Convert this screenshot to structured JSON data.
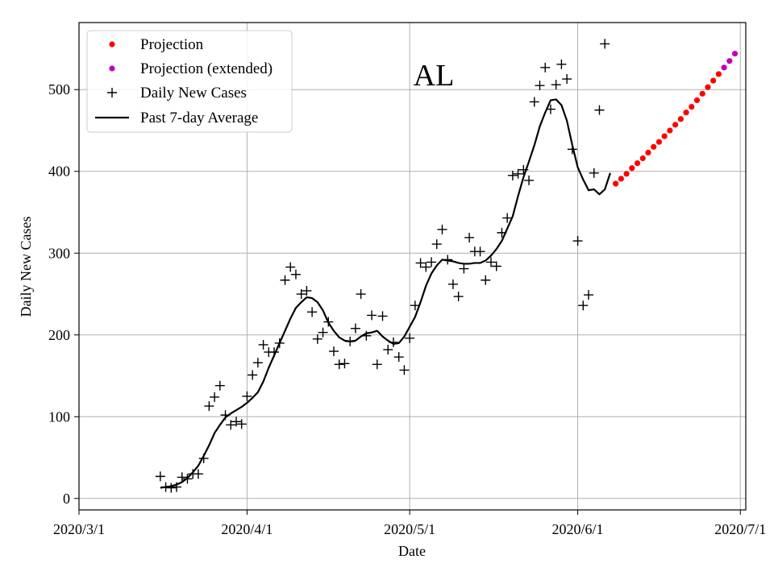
{
  "chart_data": {
    "type": "scatter",
    "annotation": "AL",
    "xlabel": "Date",
    "ylabel": "Daily New Cases",
    "xlim": [
      "2020-03-01",
      "2020-07-02"
    ],
    "ylim": [
      -14,
      582
    ],
    "x_ticks": [
      {
        "date": "2020-03-01",
        "label": "2020/3/1"
      },
      {
        "date": "2020-04-01",
        "label": "2020/4/1"
      },
      {
        "date": "2020-05-01",
        "label": "2020/5/1"
      },
      {
        "date": "2020-06-01",
        "label": "2020/6/1"
      },
      {
        "date": "2020-07-01",
        "label": "2020/7/1"
      }
    ],
    "y_ticks": [
      0,
      100,
      200,
      300,
      400,
      500
    ],
    "grid": true,
    "legend_position": "upper-left",
    "colors": {
      "projection": "#ff0000",
      "projection_extended": "#bf00bf",
      "daily": "#000000",
      "average": "#000000",
      "grid": "#b0b0b0"
    },
    "series": [
      {
        "name": "Projection",
        "marker": "dot",
        "start_date": "2020-06-08",
        "values": [
          385,
          391,
          397,
          404,
          410,
          416,
          423,
          430,
          436,
          443,
          450,
          457,
          464,
          472,
          479,
          487,
          495,
          503,
          511,
          519
        ]
      },
      {
        "name": "Projection (extended)",
        "marker": "dot",
        "start_date": "2020-06-28",
        "values": [
          527,
          535,
          544
        ]
      },
      {
        "name": "Daily New Cases",
        "marker": "plus",
        "start_date": "2020-03-16",
        "values": [
          27,
          14,
          13,
          14,
          26,
          24,
          30,
          30,
          49,
          113,
          124,
          138,
          102,
          90,
          94,
          91,
          125,
          151,
          166,
          188,
          179,
          179,
          190,
          267,
          283,
          274,
          250,
          254,
          228,
          195,
          203,
          216,
          180,
          164,
          165,
          192,
          208,
          250,
          199,
          224,
          164,
          223,
          182,
          191,
          173,
          157,
          196,
          236,
          288,
          283,
          289,
          311,
          329,
          292,
          262,
          247,
          281,
          319,
          302,
          302,
          267,
          289,
          284,
          325,
          343,
          395,
          397,
          402,
          389,
          485,
          505,
          527,
          476,
          506,
          531,
          513,
          427,
          315,
          236,
          249,
          398,
          475,
          556
        ]
      },
      {
        "name": "Past 7-day Average",
        "marker": "line",
        "start_date": "2020-03-16",
        "values": [
          13,
          14,
          15,
          17,
          20,
          25,
          32,
          40,
          52,
          65,
          80,
          90,
          99,
          104,
          108,
          112,
          117,
          123,
          130,
          143,
          160,
          175,
          190,
          205,
          220,
          233,
          240,
          246,
          245,
          240,
          230,
          215,
          205,
          197,
          193,
          192,
          193,
          198,
          202,
          203,
          205,
          198,
          193,
          189,
          190,
          198,
          210,
          222,
          240,
          260,
          275,
          285,
          292,
          291,
          290,
          288,
          287,
          287,
          288,
          288,
          291,
          297,
          305,
          315,
          330,
          345,
          370,
          393,
          412,
          432,
          455,
          472,
          487,
          488,
          481,
          462,
          432,
          405,
          390,
          377,
          378,
          372,
          378,
          398
        ]
      }
    ]
  }
}
